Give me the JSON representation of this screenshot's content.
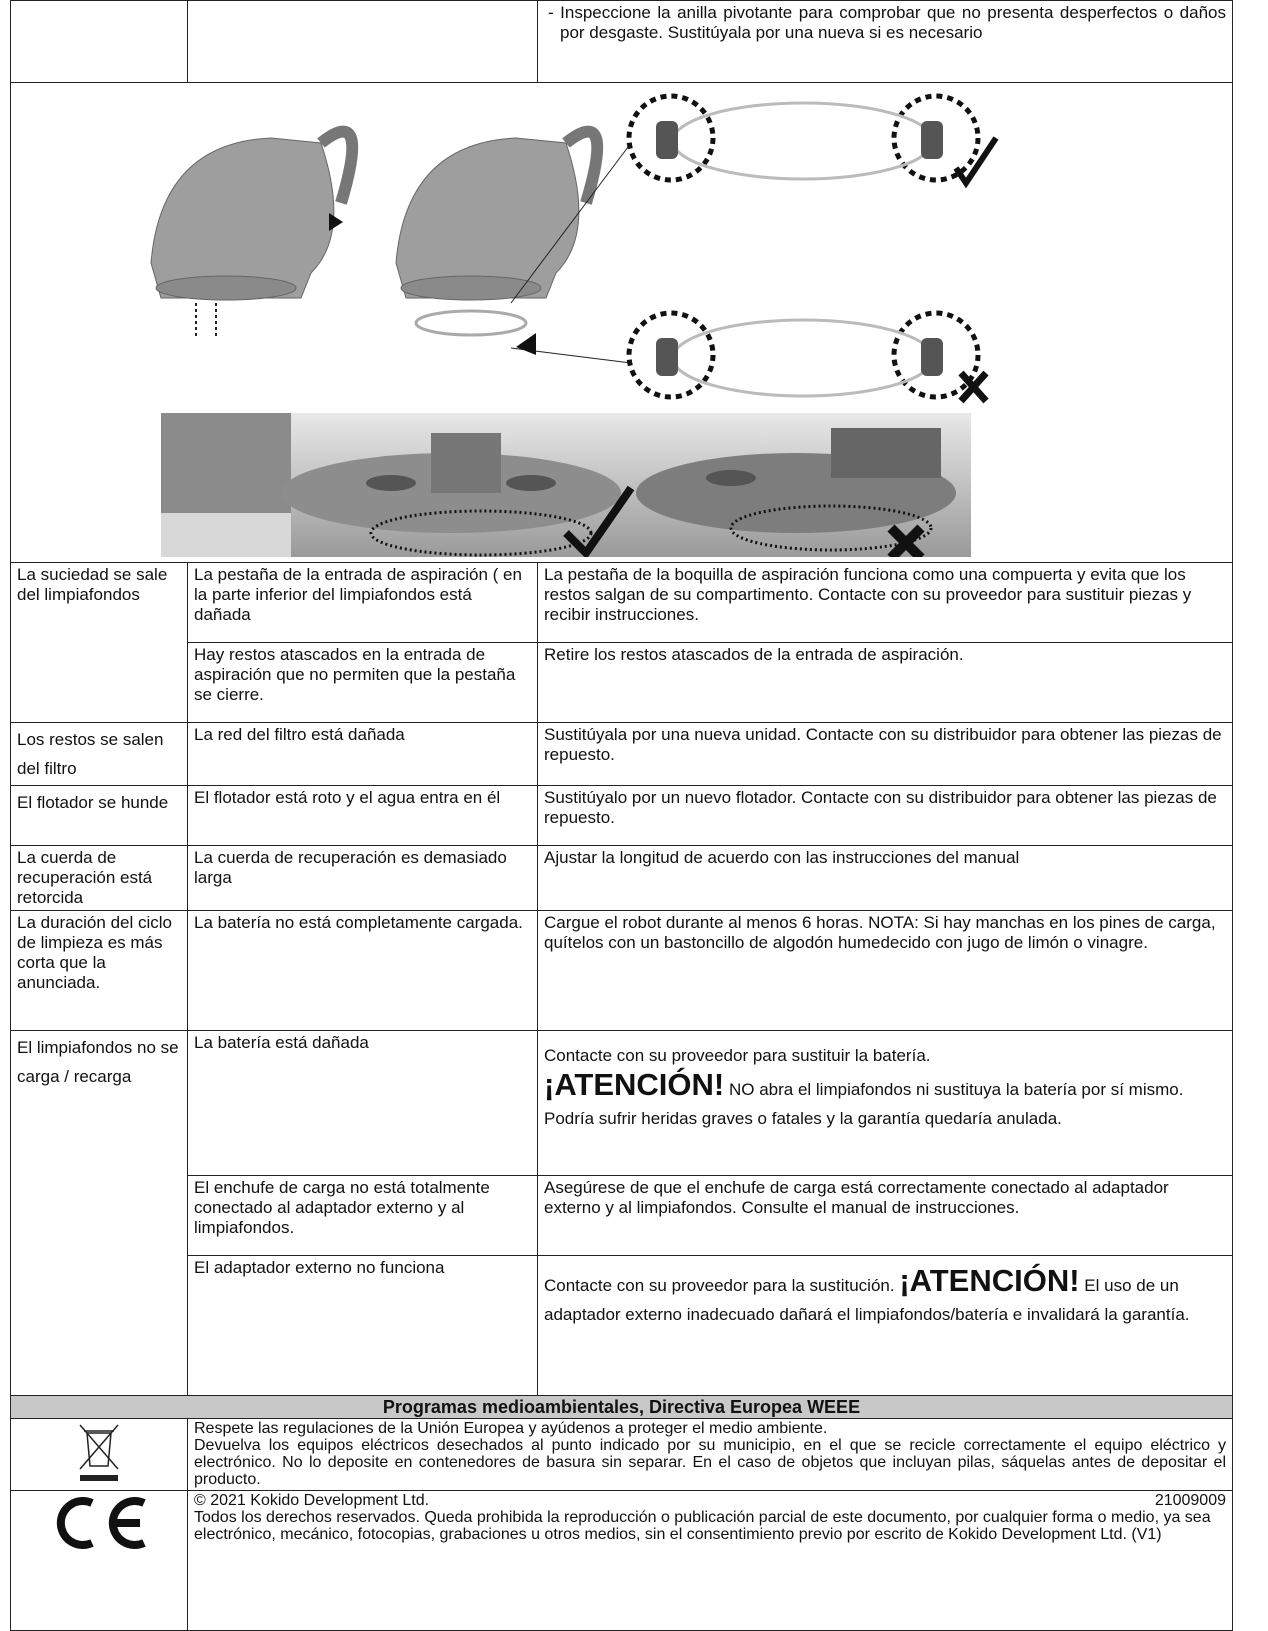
{
  "top_note": "- Inspeccione la anilla pivotante para comprobar que no presenta desperfectos o daños por desgaste. Sustitúyala por una nueva si es necesario",
  "troubleshooting": [
    {
      "problem": "La suciedad se sale del limpiafondos",
      "causes": [
        {
          "cause": "La pestaña de la entrada de aspiración ( en la parte inferior del limpiafondos está dañada",
          "solution": "La pestaña de la boquilla de aspiración funciona como una compuerta y evita que los restos salgan de su compartimento. Contacte con su proveedor para sustituir piezas y recibir instrucciones."
        },
        {
          "cause": "Hay restos atascados en la entrada de aspiración que no permiten que la pestaña se cierre.",
          "solution": "Retire los restos atascados de la entrada de aspiración."
        }
      ]
    },
    {
      "problem": "Los restos se salen del filtro",
      "causes": [
        {
          "cause": "La red del filtro está dañada",
          "solution": "Sustitúyala por una nueva unidad. Contacte con su distribuidor para obtener las piezas de repuesto."
        }
      ]
    },
    {
      "problem": "El flotador se hunde",
      "causes": [
        {
          "cause": "El flotador está roto y el agua entra en él",
          "solution": "Sustitúyalo por un nuevo flotador. Contacte con su distribuidor para obtener las piezas de repuesto."
        }
      ]
    },
    {
      "problem": "La cuerda de recuperación está retorcida",
      "causes": [
        {
          "cause": "La cuerda de recuperación es demasiado larga",
          "solution": "Ajustar la longitud de acuerdo con las instrucciones del manual"
        }
      ]
    },
    {
      "problem": "La duración del ciclo de limpieza es más corta que la anunciada.",
      "causes": [
        {
          "cause": "La batería no está completamente cargada.",
          "solution": "Cargue el robot durante al menos 6 horas. NOTA: Si hay manchas en los pines de carga, quítelos con un bastoncillo de algodón humedecido con jugo de limón o vinagre."
        }
      ]
    },
    {
      "problem": "El limpiafondos no se carga / recarga",
      "causes": [
        {
          "cause": "La batería está dañada",
          "solution": {
            "before": "Contacte con su proveedor para sustituir la batería.",
            "warning": "¡ATENCIÓN!",
            "after": "NO abra el limpiafondos ni sustituya la batería por sí mismo. Podría sufrir heridas graves o fatales y la garantía quedaría anulada."
          }
        },
        {
          "cause": "El enchufe de carga no está totalmente conectado al adaptador externo y al limpiafondos.",
          "solution": "Asegúrese de que el enchufe de carga está correctamente conectado al adaptador externo y al limpiafondos. Consulte el manual de instrucciones."
        },
        {
          "cause": "El adaptador externo no funciona",
          "solution": {
            "before": "Contacte con su proveedor para la sustitución.",
            "warning": "¡ATENCIÓN!",
            "after": "El uso de un adaptador externo inadecuado dañará el limpiafondos/batería e invalidará la garantía."
          }
        }
      ]
    }
  ],
  "weee": {
    "title": "Programas medioambientales, Directiva Europea WEEE",
    "paragraphs": [
      "Respete las regulaciones de la Unión Europea y ayúdenos a proteger el medio ambiente.",
      "Devuelva los equipos eléctricos desechados al punto indicado por su municipio, en el que se recicle correctamente el equipo eléctrico y electrónico. No lo deposite en contenedores de basura sin separar. En el caso de objetos que incluyan pilas, sáquelas antes de depositar el producto."
    ]
  },
  "footer": {
    "copyright": "© 2021 Kokido Development Ltd.",
    "code": "21009009",
    "text": "Todos los derechos reservados. Queda prohibida la reproducción o publicación parcial de este documento, por cualquier forma o medio, ya sea electrónico, mecánico, fotocopias, grabaciones u otros medios, sin el consentimiento previo por escrito de Kokido Development Ltd. (V1)"
  }
}
